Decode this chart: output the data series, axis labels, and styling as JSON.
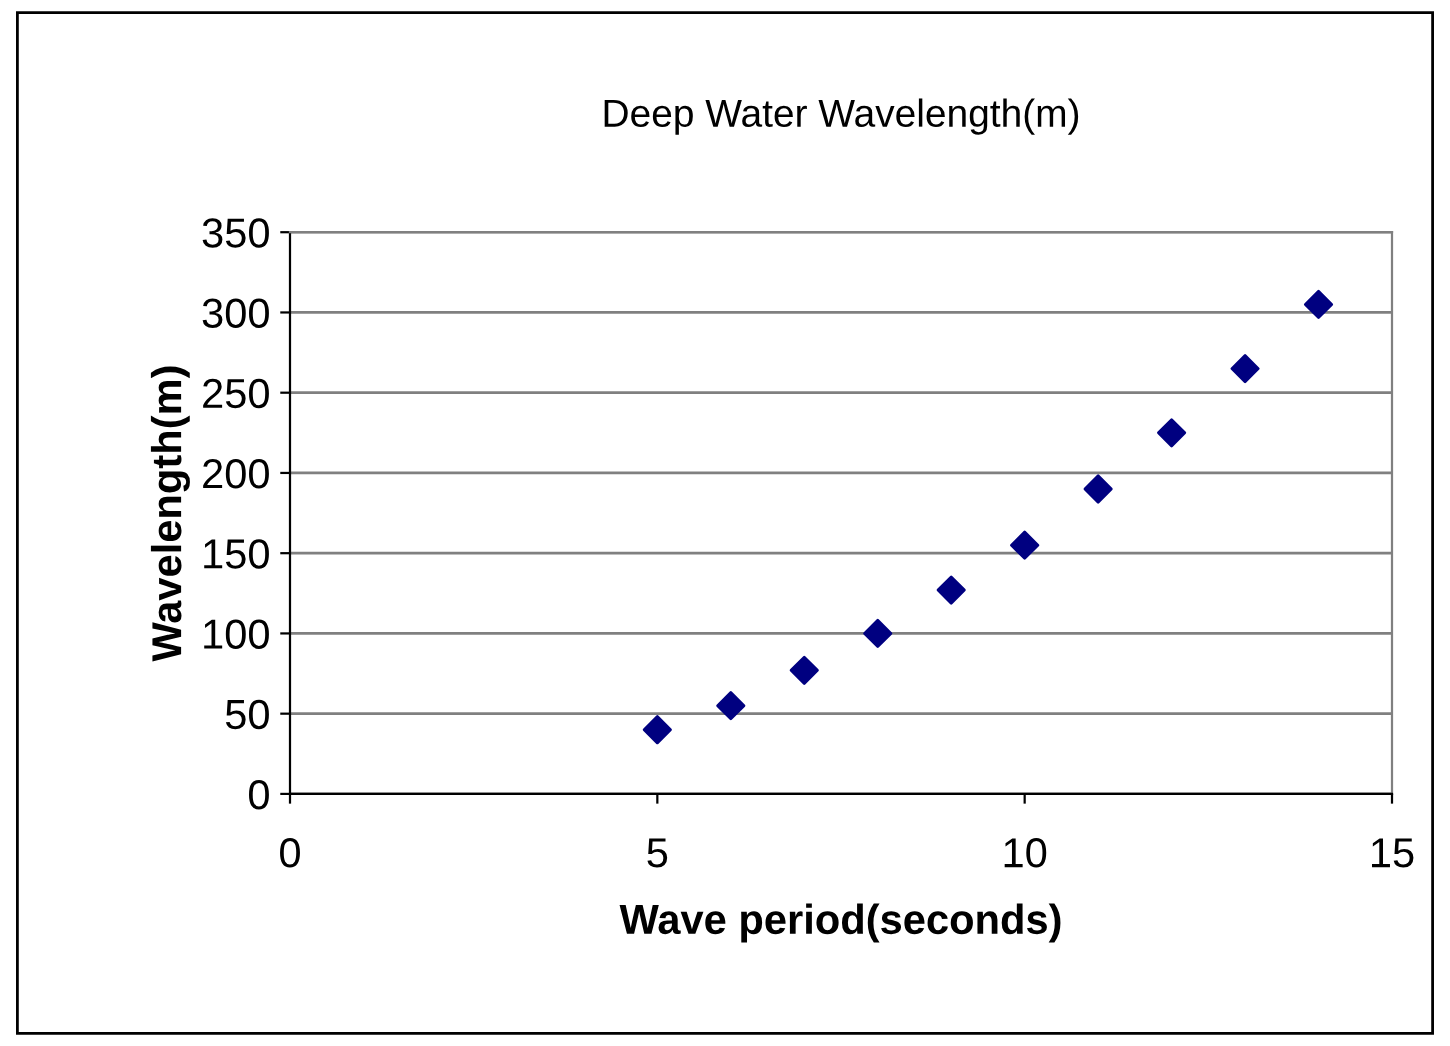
{
  "chart_data": {
    "type": "scatter",
    "title": "Deep Water Wavelength(m)",
    "xlabel": "Wave period(seconds)",
    "ylabel": "Wavelength(m)",
    "x": [
      5,
      6,
      7,
      8,
      9,
      10,
      11,
      12,
      13,
      14
    ],
    "series": [
      {
        "color": "#000080",
        "values": [
          40,
          55,
          77,
          100,
          127,
          155,
          190,
          225,
          265,
          305
        ]
      }
    ],
    "xlim": [
      0,
      15
    ],
    "xticks": [
      0,
      5,
      10,
      15
    ],
    "ylim": [
      0,
      350
    ],
    "yticks": [
      0,
      50,
      100,
      150,
      200,
      250,
      300,
      350
    ],
    "grid": "y",
    "marker": "diamond",
    "legend": false
  }
}
